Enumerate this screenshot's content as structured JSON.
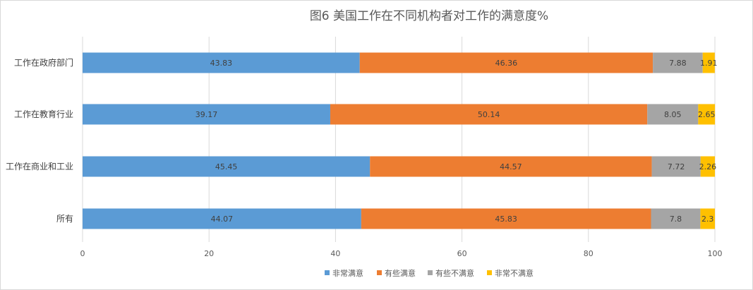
{
  "chart_data": {
    "type": "bar",
    "orientation": "horizontal",
    "stacked": true,
    "title": "图6  美国工作在不同机构者对工作的满意度%",
    "categories": [
      "工作在政府部门",
      "工作在教育行业",
      "工作在商业和工业",
      "所有"
    ],
    "series": [
      {
        "name": "非常满意",
        "color": "#5b9bd5",
        "values": [
          43.83,
          39.17,
          45.45,
          44.07
        ]
      },
      {
        "name": "有些满意",
        "color": "#ed7d31",
        "values": [
          46.36,
          50.14,
          44.57,
          45.83
        ]
      },
      {
        "name": "有些不满意",
        "color": "#a5a5a5",
        "values": [
          7.88,
          8.05,
          7.72,
          7.8
        ]
      },
      {
        "name": "非常不满意",
        "color": "#ffc000",
        "values": [
          1.91,
          2.65,
          2.26,
          2.3
        ]
      }
    ],
    "xlim": [
      0,
      100
    ],
    "xticks": [
      0,
      20,
      40,
      60,
      80,
      100
    ],
    "grid": true,
    "legend_position": "bottom"
  }
}
